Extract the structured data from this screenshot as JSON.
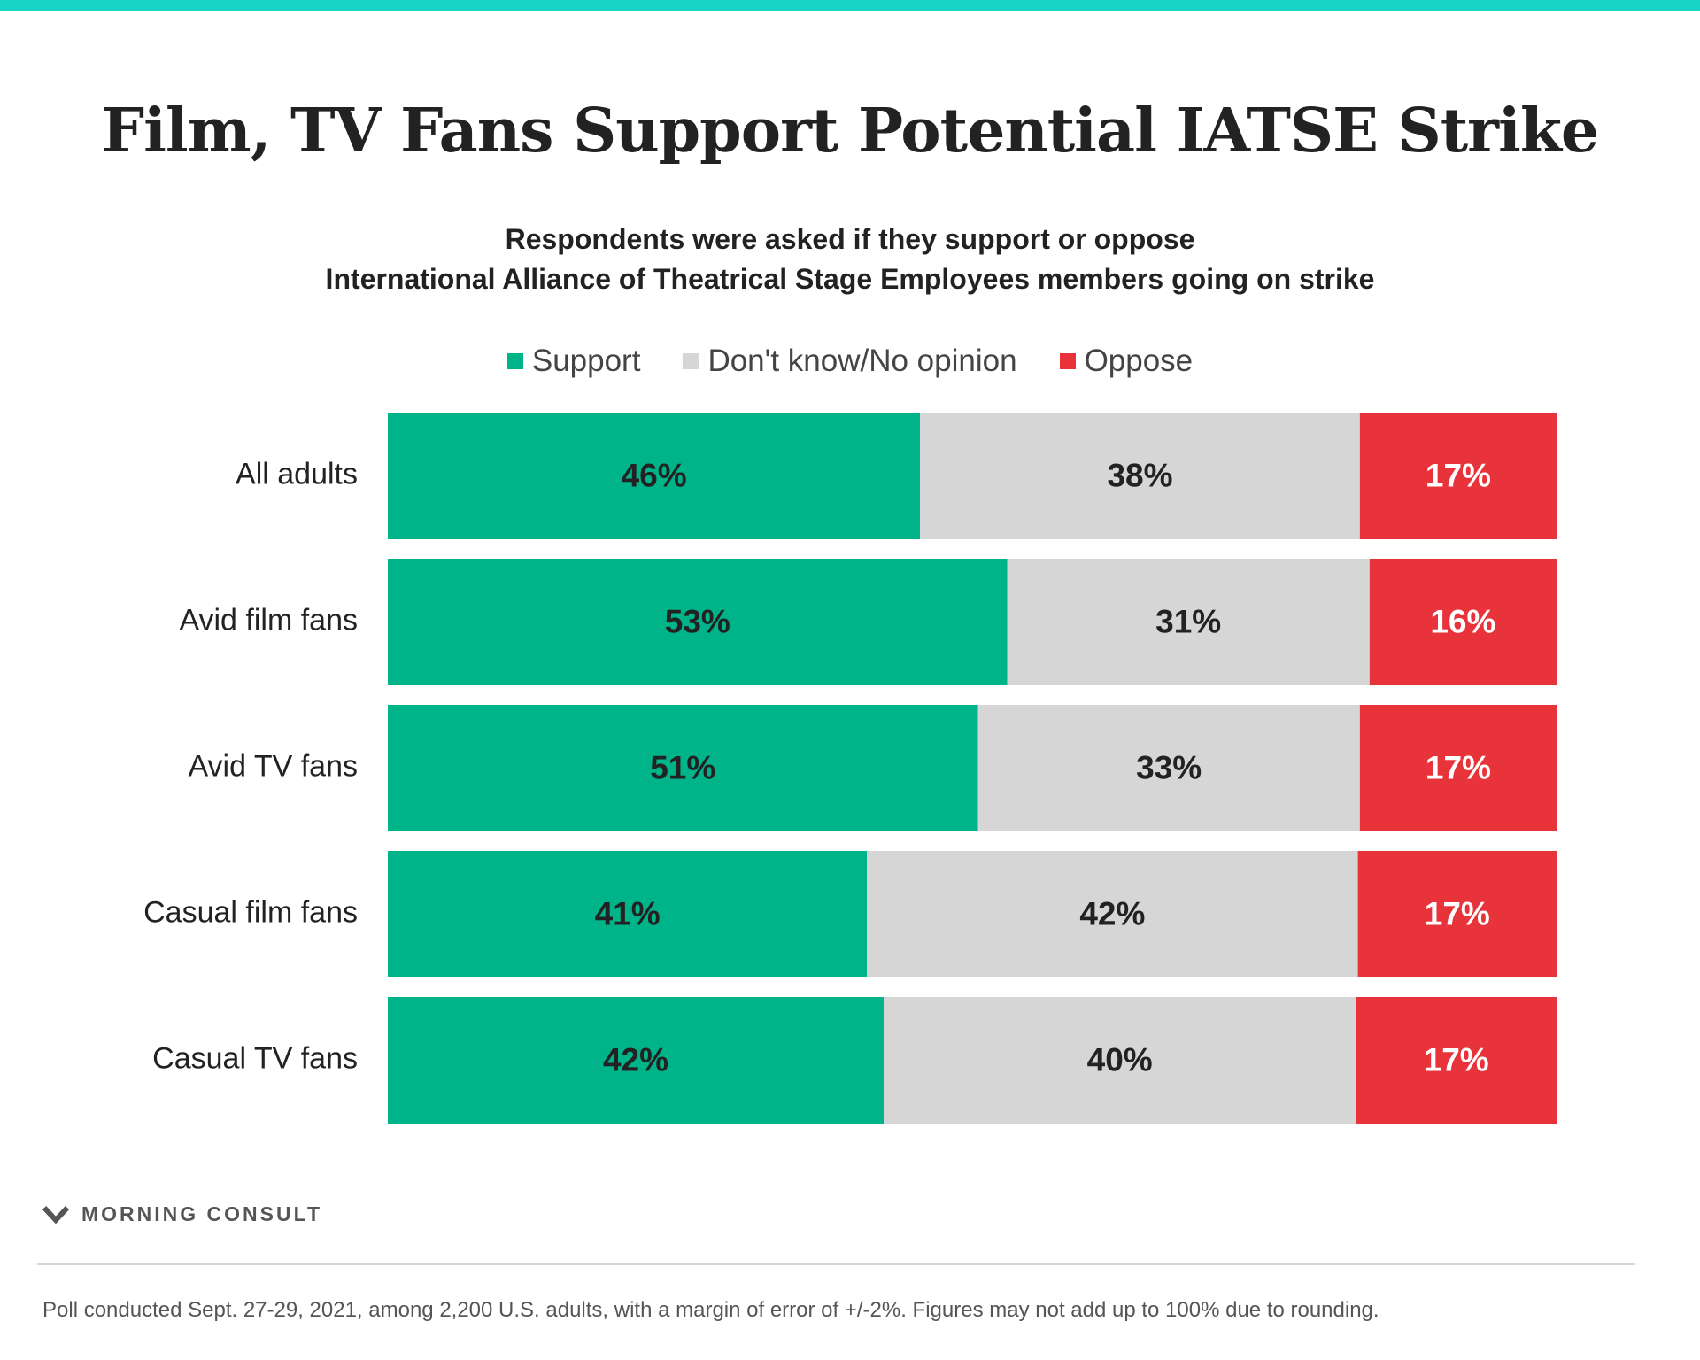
{
  "colors": {
    "accent_bar": "#17d4c4",
    "support": "#00b48a",
    "no_opinion": "#d6d6d6",
    "oppose": "#e8333a"
  },
  "title": "Film, TV Fans Support Potential IATSE Strike",
  "subtitle": {
    "line1": "Respondents were asked if they support or oppose",
    "line2": "International Alliance of Theatrical Stage Employees members going on strike"
  },
  "legend": [
    {
      "label": "Support",
      "color": "#00b48a"
    },
    {
      "label": "Don't know/No opinion",
      "color": "#d6d6d6"
    },
    {
      "label": "Oppose",
      "color": "#e8333a"
    }
  ],
  "chart_data": {
    "type": "bar",
    "orientation": "horizontal",
    "stacked": true,
    "categories": [
      "All adults",
      "Avid film fans",
      "Avid TV fans",
      "Casual film fans",
      "Casual TV fans"
    ],
    "series": [
      {
        "name": "Support",
        "values": [
          46,
          53,
          51,
          41,
          42
        ],
        "labels": [
          "46%",
          "53%",
          "51%",
          "41%",
          "42%"
        ],
        "color": "#00b48a"
      },
      {
        "name": "Don't know/No opinion",
        "values": [
          38,
          31,
          33,
          42,
          40
        ],
        "labels": [
          "38%",
          "31%",
          "33%",
          "42%",
          "40%"
        ],
        "color": "#d6d6d6"
      },
      {
        "name": "Oppose",
        "values": [
          17,
          16,
          17,
          17,
          17
        ],
        "labels": [
          "17%",
          "16%",
          "17%",
          "17%",
          "17%"
        ],
        "color": "#e8333a"
      }
    ],
    "legend_position": "top-center",
    "grid": false
  },
  "footer": {
    "logo_text": "MORNING CONSULT",
    "logo_icon": "morning-consult-m-icon",
    "note": "Poll conducted Sept. 27-29, 2021, among 2,200 U.S. adults, with a margin of error of +/-2%. Figures may not add up to 100% due to rounding."
  }
}
